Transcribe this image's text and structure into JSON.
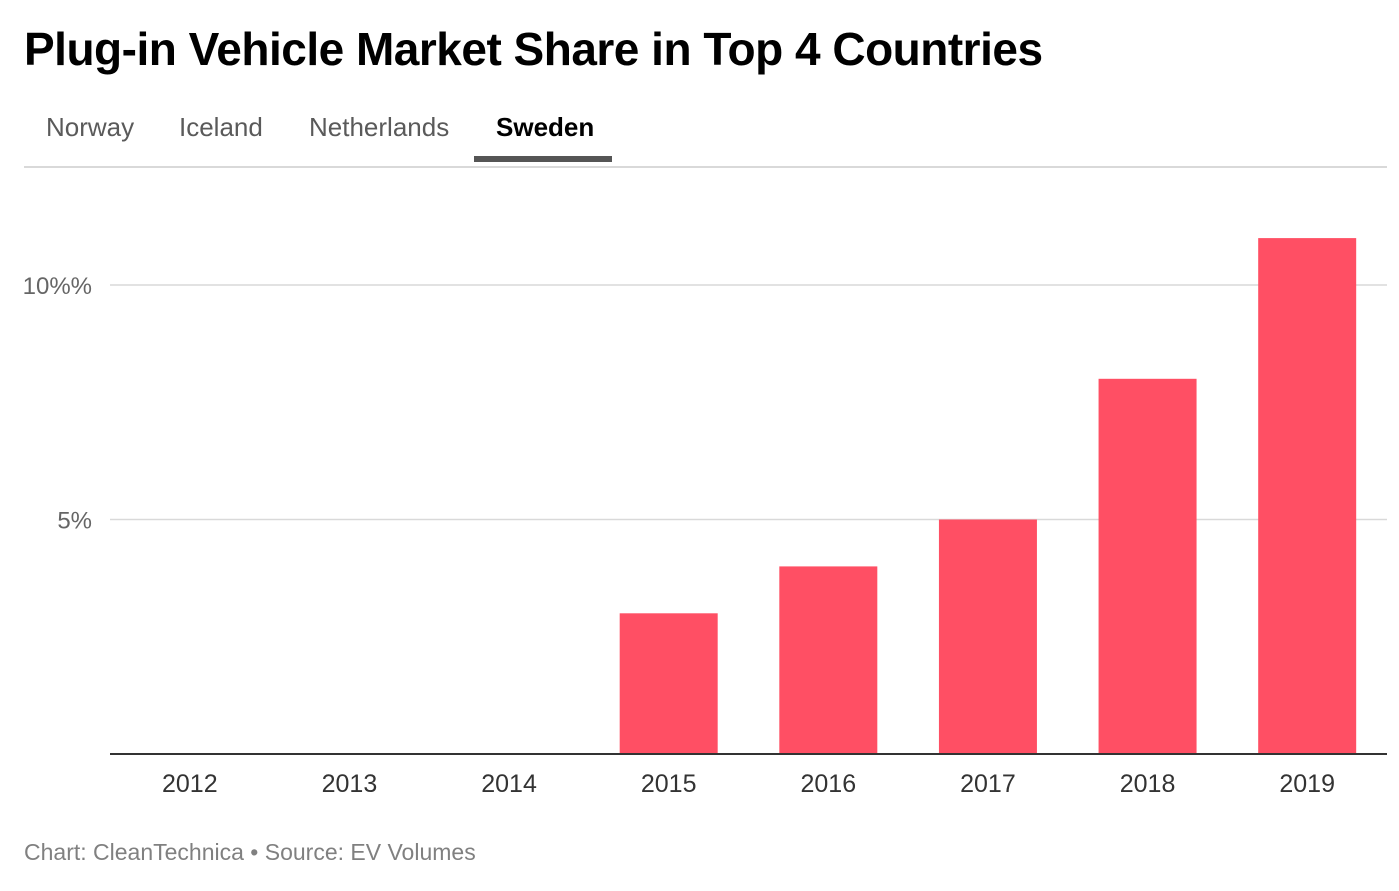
{
  "title": "Plug-in Vehicle Market Share in Top 4 Countries",
  "tabs": [
    {
      "label": "Norway",
      "active": false
    },
    {
      "label": "Iceland",
      "active": false
    },
    {
      "label": "Netherlands",
      "active": false
    },
    {
      "label": "Sweden",
      "active": true
    }
  ],
  "footer": {
    "chart_credit": "Chart: CleanTechnica",
    "separator": "•",
    "source": "Source: EV Volumes"
  },
  "colors": {
    "bar": "#ff4f64",
    "gridline": "#d9d9d9",
    "axis": "#333333",
    "tick_label": "#333333",
    "y_tick_label": "#666666"
  },
  "chart_data": {
    "type": "bar",
    "title": "Plug-in Vehicle Market Share in Top 4 Countries",
    "xlabel": "",
    "ylabel": "",
    "categories": [
      "2012",
      "2013",
      "2014",
      "2015",
      "2016",
      "2017",
      "2018",
      "2019"
    ],
    "values": [
      0,
      0,
      0,
      3,
      4,
      5,
      8,
      11
    ],
    "ylim": [
      0,
      12.5
    ],
    "y_ticks": [
      {
        "value": 5,
        "label": "5%"
      },
      {
        "value": 10,
        "label": "10%%"
      }
    ],
    "grid": true,
    "legend": "none"
  }
}
